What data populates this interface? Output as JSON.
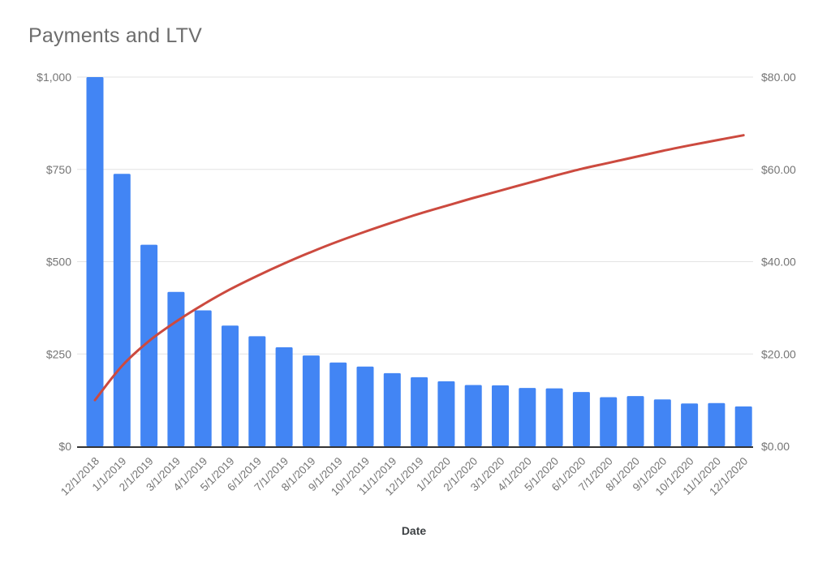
{
  "title": "Payments and LTV",
  "chart_data": {
    "type": "bar",
    "subtype": "combo-bar-line",
    "title": "Payments and LTV",
    "xlabel": "Date",
    "grid": true,
    "legend_position": "none",
    "categories": [
      "12/1/2018",
      "1/1/2019",
      "2/1/2019",
      "3/1/2019",
      "4/1/2019",
      "5/1/2019",
      "6/1/2019",
      "7/1/2019",
      "8/1/2019",
      "9/1/2019",
      "10/1/2019",
      "11/1/2019",
      "12/1/2019",
      "1/1/2020",
      "2/1/2020",
      "3/1/2020",
      "4/1/2020",
      "5/1/2020",
      "6/1/2020",
      "7/1/2020",
      "8/1/2020",
      "9/1/2020",
      "10/1/2020",
      "11/1/2020",
      "12/1/2020"
    ],
    "series": [
      {
        "name": "Payments",
        "type": "bar",
        "axis": "left",
        "color": "#4285f4",
        "values": [
          1000,
          738,
          546,
          418,
          368,
          327,
          298,
          268,
          246,
          227,
          216,
          198,
          187,
          176,
          166,
          165,
          158,
          157,
          147,
          133,
          136,
          127,
          116,
          117,
          108
        ]
      },
      {
        "name": "LTV",
        "type": "line",
        "axis": "right",
        "color": "#cc4a3f",
        "values": [
          10.0,
          17.4,
          22.8,
          27.0,
          30.7,
          34.0,
          36.9,
          39.6,
          42.1,
          44.4,
          46.5,
          48.5,
          50.4,
          52.1,
          53.8,
          55.4,
          57.0,
          58.6,
          60.1,
          61.4,
          62.7,
          64.0,
          65.2,
          66.3,
          67.4
        ]
      }
    ],
    "left_axis": {
      "max": 1000,
      "tick_values": [
        1000,
        750,
        500,
        250,
        0
      ],
      "tick_labels": [
        "$1,000",
        "$750",
        "$500",
        "$250",
        "$0"
      ]
    },
    "right_axis": {
      "max": 80,
      "tick_values": [
        80,
        60,
        40,
        20,
        0
      ],
      "tick_labels": [
        "$80.00",
        "$60.00",
        "$40.00",
        "$20.00",
        "$0.00"
      ]
    },
    "colors": {
      "grid": "#e3e3e3",
      "baseline": "#333333",
      "axis_text": "#757575",
      "title_text": "#6d6d6d",
      "xlabel_text": "#3c4043"
    }
  }
}
